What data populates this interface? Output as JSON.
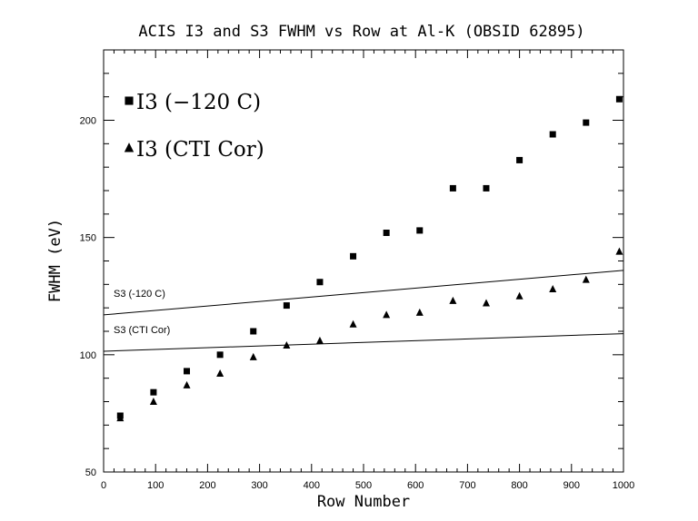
{
  "chart_data": {
    "type": "scatter",
    "title": "ACIS I3 and S3 FWHM vs Row at Al-K (OBSID 62895)",
    "xlabel": "Row Number",
    "ylabel": "FWHM (eV)",
    "xlim": [
      0,
      1000
    ],
    "ylim": [
      50,
      230
    ],
    "xticks": [
      0,
      100,
      200,
      300,
      400,
      500,
      600,
      700,
      800,
      900,
      1000
    ],
    "yticks": [
      50,
      100,
      150,
      200
    ],
    "grid": false,
    "legend_position": "top-left",
    "series": [
      {
        "name": "I3 (−120 C)",
        "marker": "square",
        "x": [
          32,
          96,
          160,
          224,
          288,
          352,
          416,
          480,
          544,
          608,
          672,
          736,
          800,
          864,
          928,
          992
        ],
        "y": [
          74,
          84,
          93,
          100,
          110,
          121,
          131,
          142,
          152,
          153,
          171,
          171,
          183,
          194,
          199,
          209
        ]
      },
      {
        "name": "I3 (CTI Cor)",
        "marker": "triangle",
        "x": [
          32,
          96,
          160,
          224,
          288,
          352,
          416,
          480,
          544,
          608,
          672,
          736,
          800,
          864,
          928,
          992
        ],
        "y": [
          73,
          80,
          87,
          92,
          99,
          104,
          106,
          113,
          117,
          118,
          123,
          122,
          125,
          128,
          132,
          144
        ]
      }
    ],
    "reference_lines": [
      {
        "label": "S3 (-120 C)",
        "x": [
          0,
          1000
        ],
        "y": [
          117,
          136
        ]
      },
      {
        "label": "S3 (CTI Cor)",
        "x": [
          0,
          1000
        ],
        "y": [
          101.5,
          109
        ]
      }
    ]
  }
}
